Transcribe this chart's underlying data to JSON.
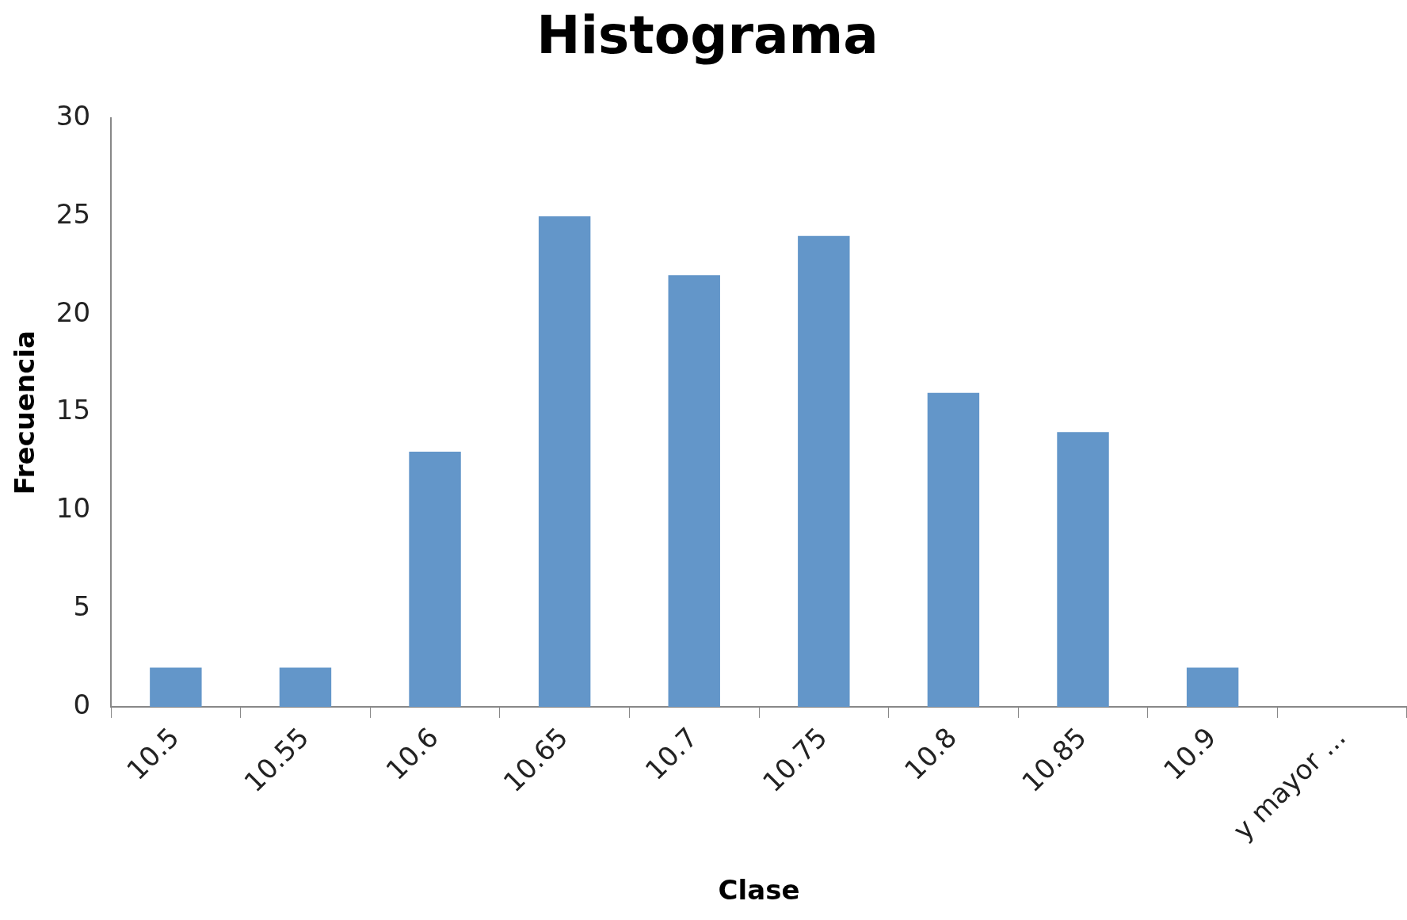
{
  "chart_data": {
    "type": "bar",
    "title": "Histograma",
    "xlabel": "Clase",
    "ylabel": "Frecuencia",
    "categories": [
      "10.5",
      "10.55",
      "10.6",
      "10.65",
      "10.7",
      "10.75",
      "10.8",
      "10.85",
      "10.9",
      "y mayor ..."
    ],
    "values": [
      2,
      2,
      13,
      25,
      22,
      24,
      16,
      14,
      2,
      0
    ],
    "color": "#6396c9",
    "ylim": [
      0,
      30
    ],
    "yticks": [
      0,
      5,
      10,
      15,
      20,
      25,
      30
    ],
    "grid": false,
    "legend": false
  }
}
